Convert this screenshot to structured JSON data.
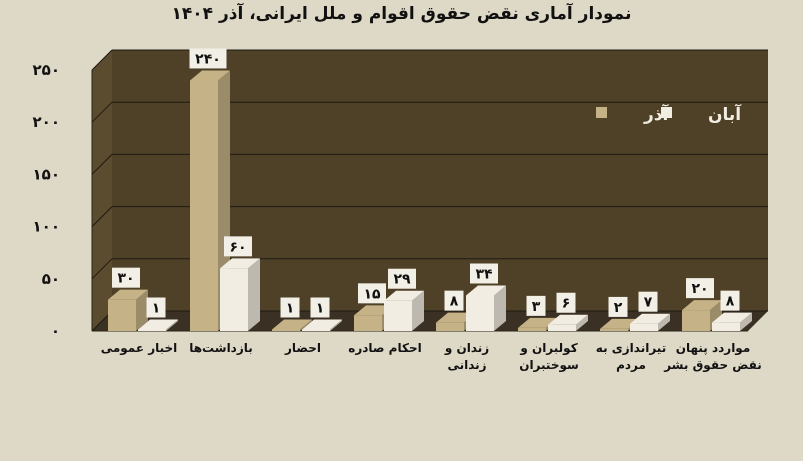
{
  "chart_data": {
    "type": "bar",
    "title": "نمودار آماری نقض حقوق اقوام و ملل ایرانی، آذر ۱۴۰۴",
    "xlabel": "",
    "ylabel": "",
    "ylim": [
      0,
      250
    ],
    "yticks": [
      "۰",
      "۵۰",
      "۱۰۰",
      "۱۵۰",
      "۲۰۰",
      "۲۵۰"
    ],
    "grid": true,
    "legend_position": "top-right",
    "categories": [
      "اخبار عمومی",
      "بازداشت‌ها",
      "احضار",
      "احکام صادره",
      "زندان و زندانی",
      "کولبران و سوختبران",
      "تیراندازی به مردم",
      "مواردد پنهان نقض حقوق بشر"
    ],
    "series": [
      {
        "name": "آذر",
        "color": "#c5b287",
        "values": [
          30,
          240,
          1,
          15,
          8,
          3,
          2,
          20
        ],
        "labels": [
          "۳۰",
          "۲۴۰",
          "۱",
          "۱۵",
          "۸",
          "۳",
          "۲",
          "۲۰"
        ]
      },
      {
        "name": "آبان",
        "color": "#f2ede2",
        "values": [
          1,
          60,
          1,
          29,
          34,
          6,
          7,
          8
        ],
        "labels": [
          "۱",
          "۶۰",
          "۱",
          "۲۹",
          "۳۴",
          "۶",
          "۷",
          "۸"
        ]
      }
    ],
    "plot_background": "#4f4127",
    "wall_color": "#5b4b2f"
  }
}
